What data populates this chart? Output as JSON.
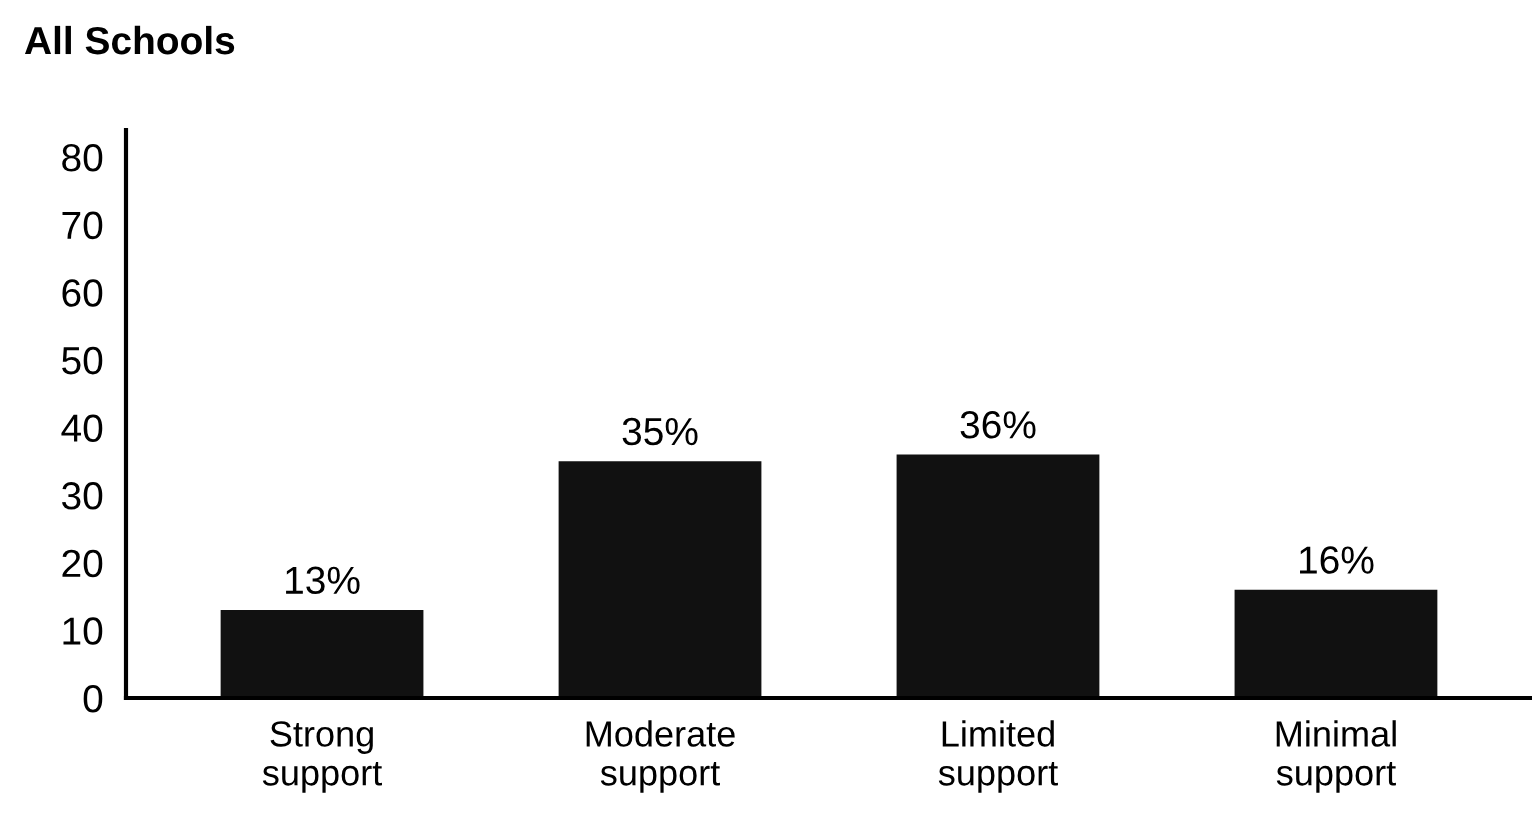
{
  "chart_data": {
    "type": "bar",
    "title": "All Schools",
    "categories": [
      "Strong\nsupport",
      "Moderate\nsupport",
      "Limited\nsupport",
      "Minimal\nsupport"
    ],
    "values": [
      13,
      35,
      36,
      16
    ],
    "color": "#111111",
    "value_labels": [
      "13%",
      "35%",
      "36%",
      "16%"
    ],
    "ylim": [
      0,
      84
    ],
    "yticks": [
      0,
      10,
      20,
      30,
      40,
      50,
      60,
      70,
      80
    ],
    "grid": false,
    "legend": false
  }
}
